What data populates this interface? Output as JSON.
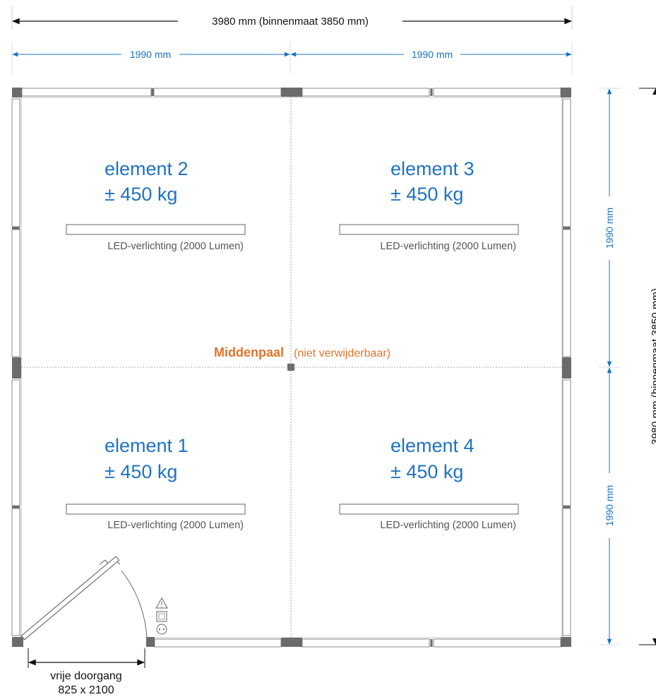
{
  "dimensions": {
    "overall_width": "3980 mm (binnenmaat 3850 mm)",
    "overall_depth": "3980 mm (binnenmaat 3850 mm)",
    "half_left": "1990 mm",
    "half_right": "1990 mm",
    "half_top": "1990 mm",
    "half_bottom": "1990 mm"
  },
  "elements": [
    {
      "name": "element 2",
      "weight": "± 450 kg",
      "lighting": "LED-verlichting (2000 Lumen)"
    },
    {
      "name": "element 3",
      "weight": "± 450 kg",
      "lighting": "LED-verlichting (2000 Lumen)"
    },
    {
      "name": "element 1",
      "weight": "± 450 kg",
      "lighting": "LED-verlichting (2000 Lumen)"
    },
    {
      "name": "element 4",
      "weight": "± 450 kg",
      "lighting": "LED-verlichting (2000 Lumen)"
    }
  ],
  "center_post": {
    "title": "Middenpaal",
    "note": "(niet verwijderbaar)"
  },
  "door": {
    "label": "vrije doorgang",
    "size": "825 x 2100"
  },
  "colors": {
    "dimension_blue": "#1a73c5",
    "element_blue": "#1f73c2",
    "accent_orange": "#e0742a",
    "post_gray": "#6b6b6b"
  }
}
